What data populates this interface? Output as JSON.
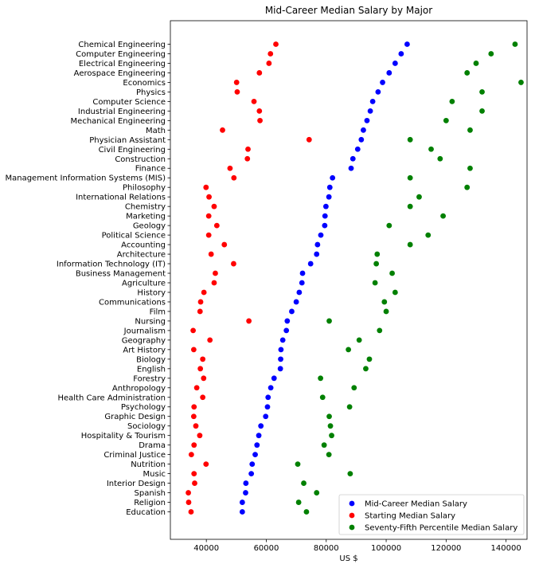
{
  "chart_data": {
    "type": "scatter",
    "title": "Mid-Career Median Salary by Major",
    "xlabel": "US $",
    "ylabel": "",
    "xlim": [
      28000,
      147000
    ],
    "x_ticks": [
      40000,
      60000,
      80000,
      100000,
      120000,
      140000
    ],
    "grid": false,
    "legend_position": "lower right",
    "categories": [
      "Chemical Engineering",
      "Computer Engineering",
      "Electrical Engineering",
      "Aerospace Engineering",
      "Economics",
      "Physics",
      "Computer Science",
      "Industrial Engineering",
      "Mechanical Engineering",
      "Math",
      "Physician Assistant",
      "Civil Engineering",
      "Construction",
      "Finance",
      "Management Information Systems (MIS)",
      "Philosophy",
      "International Relations",
      "Chemistry",
      "Marketing",
      "Geology",
      "Political Science",
      "Accounting",
      "Architecture",
      "Information Technology (IT)",
      "Business Management",
      "Agriculture",
      "History",
      "Communications",
      "Film",
      "Nursing",
      "Journalism",
      "Geography",
      "Art History",
      "Biology",
      "English",
      "Forestry",
      "Anthropology",
      "Health Care Administration",
      "Psychology",
      "Graphic Design",
      "Sociology",
      "Hospitality & Tourism",
      "Drama",
      "Criminal Justice",
      "Nutrition",
      "Music",
      "Interior Design",
      "Spanish",
      "Religion",
      "Education"
    ],
    "series": [
      {
        "name": "Mid-Career Median Salary",
        "color": "#0000ff",
        "values": [
          107000,
          105000,
          103000,
          101000,
          98800,
          97300,
          95500,
          94700,
          93600,
          92400,
          91700,
          90500,
          88900,
          88300,
          82100,
          81200,
          80900,
          79900,
          79600,
          79500,
          78200,
          77100,
          76800,
          74800,
          72100,
          71900,
          71000,
          70000,
          68500,
          67000,
          66700,
          65500,
          64900,
          64800,
          64700,
          62600,
          61500,
          60600,
          60400,
          59800,
          58200,
          57500,
          56900,
          56300,
          55300,
          55000,
          53200,
          53100,
          52000,
          52000
        ]
      },
      {
        "name": "Starting Median Salary",
        "color": "#ff0000",
        "values": [
          63200,
          61400,
          60900,
          57700,
          50100,
          50300,
          55900,
          57700,
          57900,
          45400,
          74300,
          53900,
          53700,
          47900,
          49200,
          39900,
          40900,
          42600,
          40800,
          43500,
          40800,
          46000,
          41600,
          49100,
          43000,
          42600,
          39200,
          38100,
          37900,
          54200,
          35600,
          41200,
          35800,
          38800,
          38000,
          39100,
          36800,
          38800,
          35900,
          35800,
          36500,
          37800,
          35900,
          35000,
          39900,
          35900,
          36100,
          34000,
          34100,
          34900
        ]
      },
      {
        "name": "Seventy-Fifth Percentile Median Salary",
        "color": "#008000",
        "values": [
          143000,
          135000,
          130000,
          127000,
          145000,
          132000,
          122000,
          132000,
          120000,
          128000,
          108000,
          115000,
          118000,
          128000,
          108000,
          127000,
          111000,
          108000,
          119000,
          101000,
          114000,
          108000,
          97000,
          96700,
          102000,
          96300,
          103000,
          99400,
          100000,
          81000,
          97800,
          91000,
          87400,
          94400,
          93200,
          78100,
          89300,
          78800,
          87800,
          81000,
          81400,
          81800,
          79300,
          80900,
          70500,
          88000,
          72500,
          76800,
          70800,
          73400
        ]
      }
    ]
  }
}
